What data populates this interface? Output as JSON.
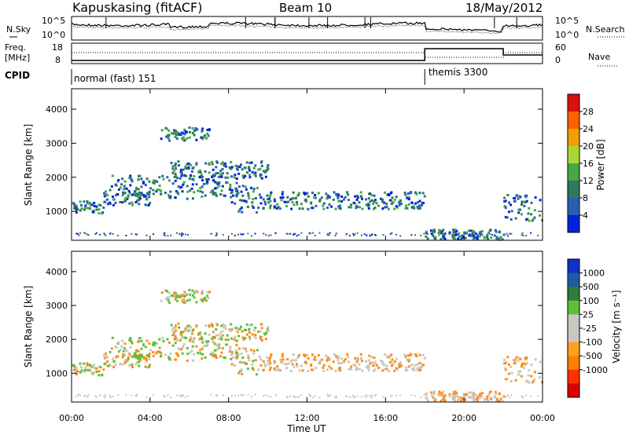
{
  "header": {
    "station": "Kapuskasing (fitACF)",
    "beam": "Beam 10",
    "date": "18/May/2012"
  },
  "noise_panel": {
    "left_label": "N.Sky",
    "right_label": "N.Search",
    "left_ticks": [
      "10^5",
      "10^0"
    ],
    "right_ticks": [
      "10^5",
      "10^0"
    ]
  },
  "freq_panel": {
    "left_label_1": "Freq.",
    "left_label_2": "[MHz]",
    "right_label": "Nave",
    "left_ticks": [
      "18",
      "8"
    ],
    "right_ticks": [
      "60",
      "0"
    ]
  },
  "cpid": {
    "label": "CPID",
    "segments": [
      {
        "start_hr": 0.0,
        "text": "normal (fast) 151"
      },
      {
        "start_hr": 18.0,
        "text": "themis 3300"
      }
    ]
  },
  "x_axis": {
    "label": "Time UT",
    "range_hr": [
      0,
      24
    ],
    "ticks": [
      {
        "hr": 0,
        "text": "00:00"
      },
      {
        "hr": 4,
        "text": "04:00"
      },
      {
        "hr": 8,
        "text": "08:00"
      },
      {
        "hr": 12,
        "text": "12:00"
      },
      {
        "hr": 16,
        "text": "16:00"
      },
      {
        "hr": 20,
        "text": "20:00"
      },
      {
        "hr": 24,
        "text": "00:00"
      }
    ]
  },
  "y_axis": {
    "label": "Slant Range [km]",
    "range_km": [
      150,
      4600
    ],
    "ticks": [
      {
        "km": 1000,
        "text": "1000"
      },
      {
        "km": 2000,
        "text": "2000"
      },
      {
        "km": 3000,
        "text": "3000"
      },
      {
        "km": 4000,
        "text": "4000"
      }
    ]
  },
  "colors": {
    "power": [
      "#0022dd",
      "#2a5fb0",
      "#2e7a5a",
      "#46a846",
      "#a8d838",
      "#f0a000",
      "#ff6000",
      "#dd1010"
    ],
    "velocity": [
      "#1030c8",
      "#1e5ea0",
      "#2f7c3c",
      "#5cc038",
      "#c8c8c0",
      "#c8c8c0",
      "#ffa020",
      "#ff8000",
      "#ff3000",
      "#dd0000"
    ],
    "velocity_scatter": [
      "#c8c8c0",
      "#ff8c1a",
      "#5cc038",
      "#2f7c3c",
      "#1e5ea0"
    ]
  },
  "colorbars": {
    "power": {
      "label": "Power [dB]",
      "ticks": [
        "4",
        "8",
        "12",
        "16",
        "20",
        "24",
        "28"
      ]
    },
    "velocity": {
      "label": "Velocity [m s⁻¹]",
      "ticks": [
        "-1000",
        "-500",
        "-100",
        "-25",
        "25",
        "100",
        "500",
        "1000"
      ]
    }
  },
  "chart_data": {
    "type": "heatmap",
    "title": "Kapuskasing (fitACF)   Beam 10   18/May/2012",
    "xlabel": "Time UT",
    "ylabel": "Slant Range [km]",
    "xlim": [
      0,
      24
    ],
    "ylim": [
      150,
      4600
    ],
    "scatter_bands": [
      {
        "t0": 0.0,
        "t1": 1.6,
        "r_center": 1150,
        "r_width": 180
      },
      {
        "t0": 1.6,
        "t1": 4.0,
        "r_center": 1450,
        "r_width": 250
      },
      {
        "t0": 2.0,
        "t1": 8.5,
        "r_center": 1750,
        "r_width": 350
      },
      {
        "t0": 4.5,
        "t1": 7.0,
        "r_center": 3300,
        "r_width": 200
      },
      {
        "t0": 5.0,
        "t1": 10.0,
        "r_center": 2250,
        "r_width": 250
      },
      {
        "t0": 8.0,
        "t1": 9.5,
        "r_center": 1400,
        "r_width": 400
      },
      {
        "t0": 9.5,
        "t1": 18.0,
        "r_center": 1350,
        "r_width": 250
      },
      {
        "t0": 18.0,
        "t1": 22.0,
        "r_center": 350,
        "r_width": 150
      },
      {
        "t0": 22.0,
        "t1": 24.0,
        "r_center": 1150,
        "r_width": 400
      }
    ],
    "power_colorbar": {
      "label": "Power [dB]",
      "range": [
        0,
        32
      ],
      "ticks": [
        4,
        8,
        12,
        16,
        20,
        24,
        28
      ]
    },
    "velocity_colorbar": {
      "label": "Velocity [m s-1]",
      "ticks": [
        -1000,
        -500,
        -100,
        -25,
        25,
        100,
        500,
        1000
      ]
    },
    "cpid_change_hr": 18.0
  }
}
